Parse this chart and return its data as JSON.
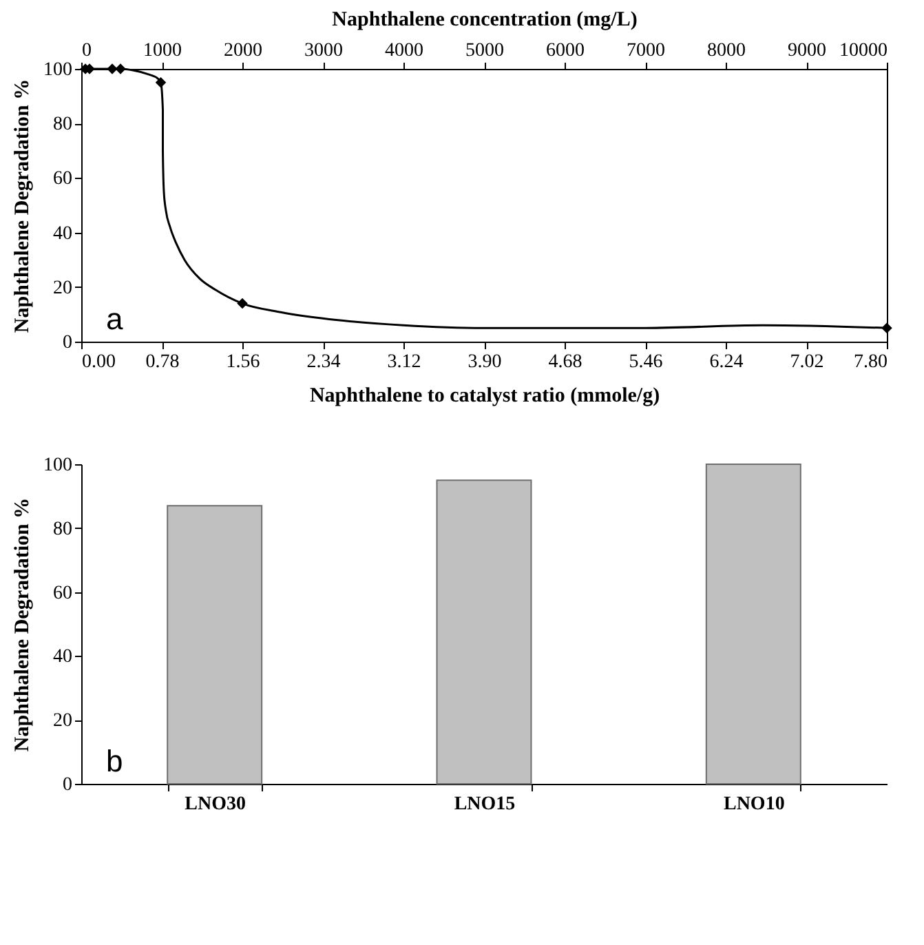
{
  "chart_data": [
    {
      "type": "line",
      "ylabel": "Naphthalene Degradation %",
      "xlabel": "Naphthalene to catalyst ratio (mmole/g)",
      "x2label": "Naphthalene concentration (mg/L)",
      "xlim": [
        0,
        7.8
      ],
      "xticks": [
        {
          "value": 0,
          "label": "0.00"
        },
        0.78,
        1.56,
        2.34,
        3.12,
        {
          "value": 3.9,
          "label": "3.90"
        },
        4.68,
        5.46,
        6.24,
        7.02,
        {
          "value": 7.8,
          "label": "7.80"
        }
      ],
      "x2lim": [
        0,
        10000
      ],
      "x2ticks": [
        0,
        1000,
        2000,
        3000,
        4000,
        5000,
        6000,
        7000,
        8000,
        9000,
        10000
      ],
      "ylim": [
        0,
        100
      ],
      "yticks": [
        0,
        20,
        40,
        60,
        80,
        100
      ],
      "grid": false,
      "annotations": [
        "a"
      ],
      "series": [
        {
          "type": "line",
          "color": "#000000",
          "marker": "none",
          "line_style": "solid",
          "x": [
            0.04,
            0.08,
            0.3,
            0.38,
            0.5,
            0.65,
            0.74,
            0.77,
            0.79,
            0.79,
            0.8,
            0.82,
            0.86,
            0.92,
            1.0,
            1.15,
            1.3,
            1.56,
            1.9,
            2.34,
            3.12,
            3.9,
            5.46,
            6.6,
            7.8
          ],
          "values": [
            100,
            100,
            100,
            100,
            99.5,
            98,
            96.5,
            95,
            85,
            70,
            55,
            48,
            42,
            36,
            30,
            23,
            19,
            14,
            11,
            8.5,
            6,
            5,
            5,
            6,
            5
          ]
        },
        {
          "type": "scatter",
          "color": "#000000",
          "marker": "diamond",
          "x": [
            0.04,
            0.08,
            0.3,
            0.38,
            0.77,
            1.56,
            7.8
          ],
          "values": [
            100,
            100,
            100,
            100,
            95,
            14,
            5
          ]
        }
      ]
    },
    {
      "type": "bar",
      "ylabel": "Naphthalene Degradation %",
      "categories": [
        "LNO30",
        "LNO15",
        "LNO10"
      ],
      "values": [
        87,
        95,
        100
      ],
      "color": "#c0c0c0",
      "ylim": [
        0,
        100
      ],
      "yticks": [
        0,
        20,
        40,
        60,
        80,
        100
      ],
      "grid": false,
      "annotations": [
        "b"
      ]
    }
  ]
}
